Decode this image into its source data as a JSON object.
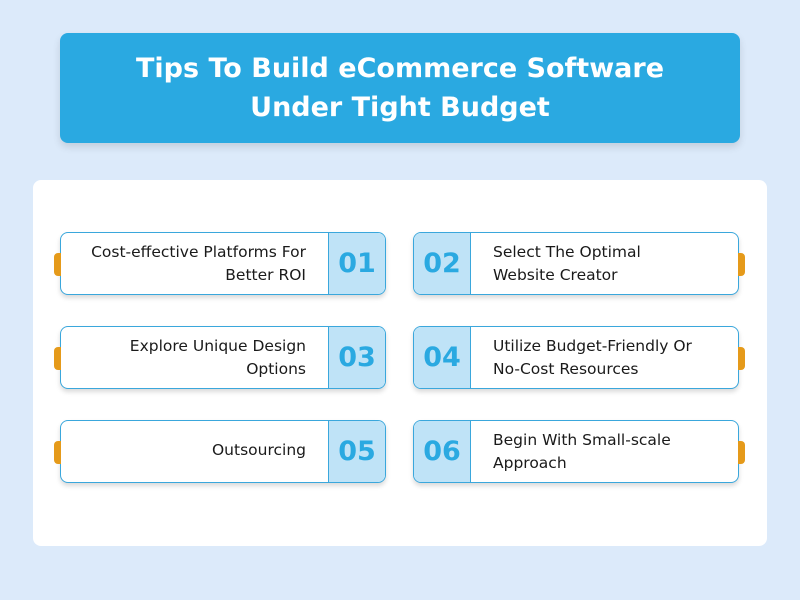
{
  "title": "Tips To Build eCommerce Software\nUnder Tight Budget",
  "tips": [
    {
      "number": "01",
      "text": "Cost-effective Platforms For\nBetter ROI"
    },
    {
      "number": "02",
      "text": "Select The Optimal\nWebsite Creator"
    },
    {
      "number": "03",
      "text": "Explore Unique Design\nOptions"
    },
    {
      "number": "04",
      "text": "Utilize Budget-Friendly Or\nNo-Cost Resources"
    },
    {
      "number": "05",
      "text": "Outsourcing"
    },
    {
      "number": "06",
      "text": "Begin With Small-scale\nApproach"
    }
  ],
  "colors": {
    "accent": "#2aa9e1",
    "number_bg": "#bfe3f7",
    "tab": "#e59a1a",
    "background": "#dceafa"
  }
}
